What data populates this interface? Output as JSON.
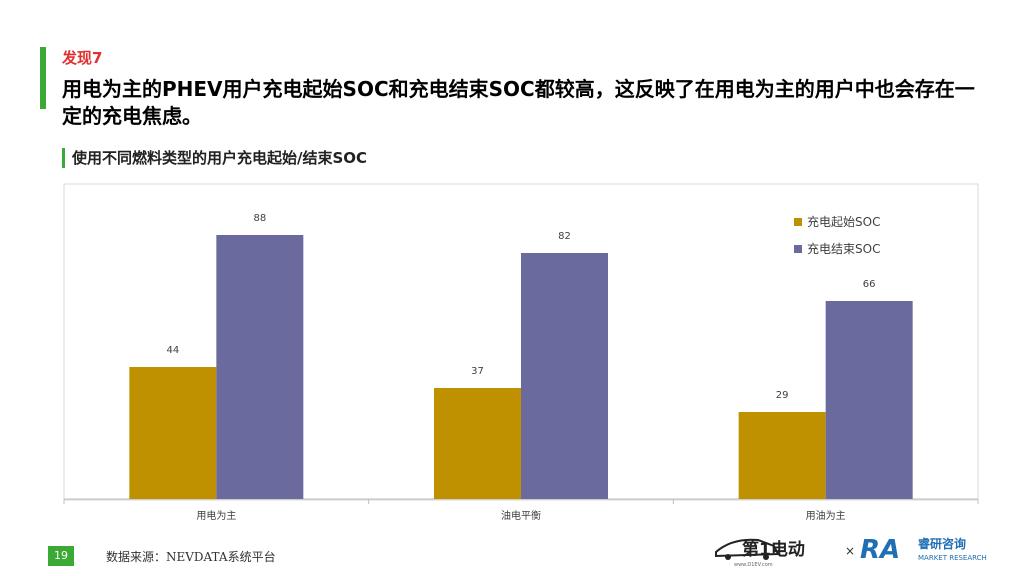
{
  "finding_label": "发现7",
  "headline": "用电为主的PHEV用户充电起始SOC和充电结束SOC都较高，这反映了在用电为主的用户中也会存在一定的充电焦虑。",
  "subtitle": "使用不同燃料类型的用户充电起始/结束SOC",
  "footer": {
    "page_number": "19",
    "source": "数据来源：NEVDATA系统平台",
    "logo_left_text": "第1电动",
    "logo_left_url": "www.D1EV.com",
    "times": "×",
    "logo_right_mark": "RA",
    "logo_right_cn": "睿研咨询",
    "logo_right_en": "MARKET RESEARCH"
  },
  "colors": {
    "accent_green": "#3aaa35",
    "finding_red": "#e03030",
    "series_start": "#bf9000",
    "series_end": "#6a6a9e"
  },
  "chart_data": {
    "type": "bar",
    "categories": [
      "用电为主",
      "油电平衡",
      "用油为主"
    ],
    "series": [
      {
        "name": "充电起始SOC",
        "values": [
          44,
          37,
          29
        ]
      },
      {
        "name": "充电结束SOC",
        "values": [
          88,
          82,
          66
        ]
      }
    ],
    "ylim": [
      0,
      100
    ],
    "grid": false,
    "legend_position": "top-right",
    "data_labels": true
  }
}
